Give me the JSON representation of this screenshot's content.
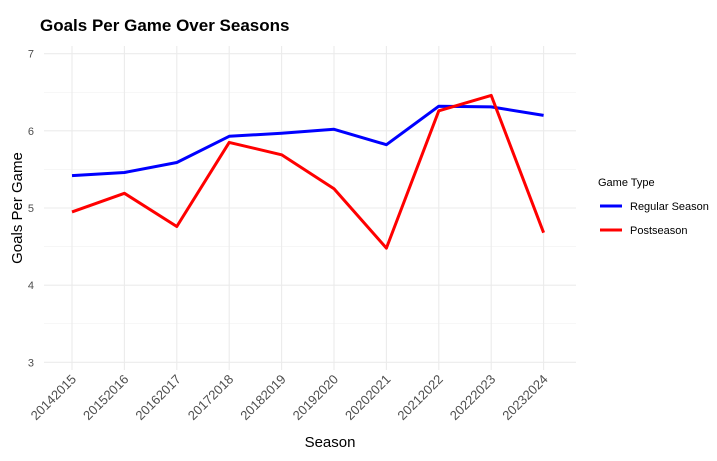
{
  "chart_data": {
    "type": "line",
    "title": "Goals Per Game Over Seasons",
    "xlabel": "Season",
    "ylabel": "Goals Per Game",
    "categories": [
      "20142015",
      "20152016",
      "20162017",
      "20172018",
      "20182019",
      "20192020",
      "20202021",
      "20212022",
      "20222023",
      "20232024"
    ],
    "ylim": [
      2.9,
      7.1
    ],
    "yticks": [
      3,
      4,
      5,
      6,
      7
    ],
    "grid": true,
    "legend": {
      "title": "Game Type",
      "position": "right"
    },
    "series": [
      {
        "name": "Regular Season",
        "color": "#0000ff",
        "values": [
          5.42,
          5.46,
          5.59,
          5.93,
          5.97,
          6.02,
          5.82,
          6.32,
          6.31,
          6.2
        ]
      },
      {
        "name": "Postseason",
        "color": "#ff0000",
        "values": [
          4.95,
          5.19,
          4.76,
          5.85,
          5.69,
          5.25,
          4.48,
          6.26,
          6.46,
          4.68
        ]
      }
    ]
  }
}
